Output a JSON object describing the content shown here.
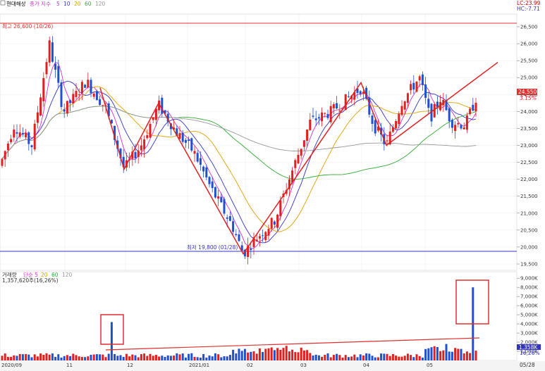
{
  "header": {
    "stock_name": "현대해상",
    "legend_title": "종가 지수",
    "ma_periods": [
      "5",
      "10",
      "20",
      "60",
      "120"
    ],
    "ma_colors": [
      "#cc33cc",
      "#3333cc",
      "#e0a000",
      "#33aa33",
      "#999999"
    ],
    "lc_text": "LC:23.99",
    "hc_text": "HC:-7.71",
    "vol_title": "거래량",
    "vol_legend": "단순 5",
    "vol_periods": [
      "20",
      "60",
      "120"
    ],
    "vol_value_text": "1,357,620주(16,26%)"
  },
  "chart_data": [
    {
      "type": "candlestick",
      "title": "현대해상",
      "y_ticks": [
        "26,500",
        "26,000",
        "25,500",
        "25,000",
        "24,500",
        "24,000",
        "23,500",
        "23,000",
        "22,500",
        "22,000",
        "21,500",
        "21,000",
        "20,500",
        "20,000",
        "19,500"
      ],
      "ylim": [
        19400,
        26700
      ],
      "x_ticks": [
        "2020/09",
        "11",
        "12",
        "2021/01",
        "02",
        "03",
        "04",
        "05"
      ],
      "high_label": "최고 26,600 (10/26)",
      "low_label": "최저 19,800 (01/28)",
      "current_price": "24,550",
      "current_change": "3.15%",
      "ohlc_sample": [
        {
          "date": "10/26",
          "high": 26600
        },
        {
          "date": "01/28",
          "low": 19800
        },
        {
          "date": "05/28",
          "close": 24550
        }
      ],
      "moving_averages": [
        "5",
        "10",
        "20",
        "60",
        "120"
      ],
      "annotations": "red zigzag trend lines, rising trendline, support lines at high 26,600 and low 19,800"
    },
    {
      "type": "bar",
      "title": "거래량",
      "y_ticks": [
        "9,000K",
        "8,000K",
        "7,000K",
        "6,000K",
        "5,000K",
        "4,000K",
        "3,000K",
        "2,000K",
        "1,000K"
      ],
      "latest_volume": "1,358K",
      "latest_pct": "16,26%",
      "x_ticks": [
        "2020/09",
        "11",
        "12",
        "2021/01",
        "02",
        "03",
        "04",
        "05"
      ],
      "last_date": "05/28",
      "spikes": [
        {
          "approx_date": "11",
          "value_k": 4200
        },
        {
          "approx_date": "05",
          "value_k": 8000
        }
      ]
    }
  ]
}
